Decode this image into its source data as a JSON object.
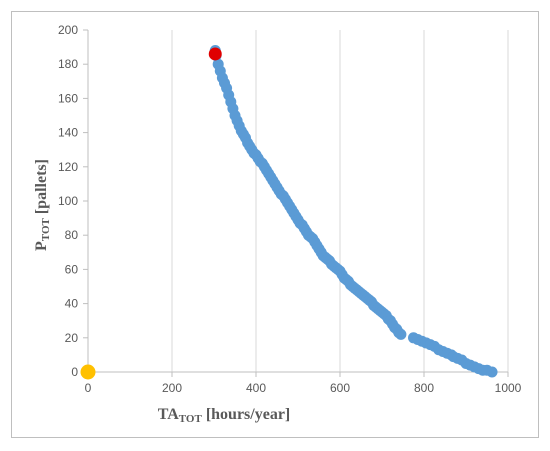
{
  "chart_data": {
    "type": "scatter",
    "xlabel": {
      "main": "TA",
      "sub": "TOT",
      "unit": " [hours/year]"
    },
    "ylabel": {
      "main": "P",
      "sub": "TOT",
      "unit": " [pallets]"
    },
    "xlim": [
      0,
      1000
    ],
    "ylim": [
      0,
      200
    ],
    "x_ticks": [
      "0",
      "200",
      "400",
      "600",
      "800",
      "1000"
    ],
    "y_ticks": [
      "0",
      "20",
      "40",
      "60",
      "80",
      "100",
      "120",
      "140",
      "160",
      "180",
      "200"
    ],
    "x_tick_values": [
      0,
      200,
      400,
      600,
      800,
      1000
    ],
    "y_tick_values": [
      0,
      20,
      40,
      60,
      80,
      100,
      120,
      140,
      160,
      180,
      200
    ],
    "grid": "vertical",
    "colors": {
      "main_series": "#5b9bd5",
      "highlight": "#e00000",
      "origin": "#ffc000",
      "grid": "#d9d9d9",
      "axis": "#bfbfbf"
    },
    "series": [
      {
        "role": "main",
        "points": [
          [
            303,
            188
          ],
          [
            305,
            185
          ],
          [
            310,
            180
          ],
          [
            315,
            176
          ],
          [
            320,
            172
          ],
          [
            325,
            169
          ],
          [
            330,
            166
          ],
          [
            335,
            162
          ],
          [
            340,
            158
          ],
          [
            345,
            154
          ],
          [
            350,
            150
          ],
          [
            355,
            147
          ],
          [
            360,
            144
          ],
          [
            365,
            141
          ],
          [
            370,
            139
          ],
          [
            375,
            137
          ],
          [
            380,
            134
          ],
          [
            385,
            132
          ],
          [
            390,
            130
          ],
          [
            395,
            128
          ],
          [
            400,
            127
          ],
          [
            405,
            125
          ],
          [
            410,
            123
          ],
          [
            415,
            122
          ],
          [
            420,
            120
          ],
          [
            425,
            118
          ],
          [
            430,
            116
          ],
          [
            435,
            114
          ],
          [
            440,
            112
          ],
          [
            445,
            110
          ],
          [
            450,
            108
          ],
          [
            455,
            106
          ],
          [
            460,
            104
          ],
          [
            465,
            103
          ],
          [
            470,
            101
          ],
          [
            475,
            99
          ],
          [
            480,
            97
          ],
          [
            485,
            95
          ],
          [
            490,
            93
          ],
          [
            495,
            91
          ],
          [
            500,
            89
          ],
          [
            505,
            87
          ],
          [
            510,
            86
          ],
          [
            515,
            84
          ],
          [
            520,
            82
          ],
          [
            525,
            80
          ],
          [
            530,
            79
          ],
          [
            535,
            78
          ],
          [
            540,
            76
          ],
          [
            545,
            74
          ],
          [
            550,
            72
          ],
          [
            555,
            70
          ],
          [
            560,
            68
          ],
          [
            565,
            67
          ],
          [
            570,
            66
          ],
          [
            575,
            65
          ],
          [
            580,
            63
          ],
          [
            585,
            62
          ],
          [
            590,
            61
          ],
          [
            595,
            60
          ],
          [
            600,
            59
          ],
          [
            605,
            57
          ],
          [
            610,
            55
          ],
          [
            615,
            54
          ],
          [
            620,
            53
          ],
          [
            625,
            51
          ],
          [
            630,
            50
          ],
          [
            635,
            49
          ],
          [
            640,
            48
          ],
          [
            645,
            47
          ],
          [
            650,
            46
          ],
          [
            655,
            45
          ],
          [
            660,
            44
          ],
          [
            665,
            43
          ],
          [
            670,
            42
          ],
          [
            675,
            41
          ],
          [
            680,
            39
          ],
          [
            685,
            38
          ],
          [
            690,
            37
          ],
          [
            695,
            36
          ],
          [
            700,
            35
          ],
          [
            705,
            34
          ],
          [
            710,
            33
          ],
          [
            715,
            31
          ],
          [
            720,
            30
          ],
          [
            725,
            28
          ],
          [
            730,
            26
          ],
          [
            735,
            25
          ],
          [
            740,
            23
          ],
          [
            745,
            22
          ],
          [
            775,
            20
          ],
          [
            785,
            19
          ],
          [
            795,
            18
          ],
          [
            805,
            17
          ],
          [
            815,
            16
          ],
          [
            825,
            15
          ],
          [
            835,
            13
          ],
          [
            845,
            12
          ],
          [
            855,
            11
          ],
          [
            865,
            10
          ],
          [
            870,
            9
          ],
          [
            880,
            8
          ],
          [
            890,
            7
          ],
          [
            900,
            5
          ],
          [
            910,
            4
          ],
          [
            920,
            3
          ],
          [
            930,
            2
          ],
          [
            940,
            1
          ],
          [
            950,
            1
          ],
          [
            962,
            0
          ]
        ]
      },
      {
        "role": "highlight",
        "points": [
          [
            303,
            186
          ]
        ]
      },
      {
        "role": "origin",
        "points": [
          [
            0,
            0
          ]
        ]
      }
    ]
  }
}
